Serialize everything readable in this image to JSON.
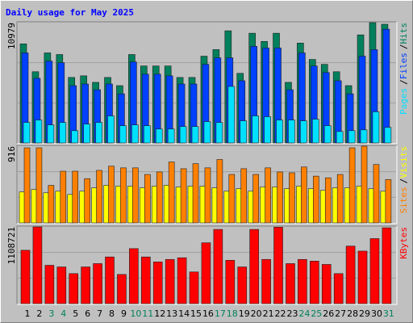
{
  "legend_separator": "/",
  "chart_data": [
    {
      "type": "bar",
      "title": "Daily usage for May 2025",
      "ylim": [
        0,
        10979
      ],
      "yticks": [
        10979
      ],
      "grid": true,
      "legend": "right",
      "series": [
        {
          "name": "Hits",
          "color": "#00805c",
          "values": [
            9040,
            6499,
            8217,
            8068,
            5976,
            6125,
            5528,
            5976,
            5229,
            8068,
            7022,
            7022,
            7022,
            5976,
            5976,
            7918,
            8516,
            10234,
            6350,
            10010,
            9263,
            10010,
            5528,
            9113,
            7619,
            7171,
            6499,
            5229,
            9860,
            10979,
            10830
          ]
        },
        {
          "name": "Files",
          "color": "#0040ff",
          "values": [
            8217,
            5901,
            7470,
            7321,
            5229,
            5378,
            4856,
            5378,
            4482,
            7395,
            6275,
            6275,
            6125,
            5378,
            5378,
            7171,
            7769,
            7769,
            5677,
            8815,
            8665,
            8665,
            4856,
            8217,
            7022,
            6424,
            5677,
            4482,
            7918,
            8516,
            10383
          ]
        },
        {
          "name": "Pages",
          "color": "#00e0ff",
          "values": [
            1868,
            2092,
            1643,
            1868,
            1121,
            1718,
            1868,
            2465,
            1569,
            1643,
            1569,
            1270,
            1270,
            1494,
            1494,
            1942,
            1868,
            5154,
            2017,
            2465,
            2390,
            2092,
            2092,
            2017,
            2166,
            1569,
            1046,
            1121,
            1195,
            2839,
            1419
          ]
        }
      ]
    },
    {
      "type": "bar",
      "ylim": [
        0,
        916
      ],
      "yticks": [
        916
      ],
      "grid": true,
      "legend": "right",
      "series": [
        {
          "name": "Visits",
          "color": "#ffff00",
          "values": [
            369,
            398,
            359,
            378,
            339,
            378,
            418,
            448,
            438,
            438,
            418,
            438,
            448,
            428,
            438,
            438,
            418,
            378,
            408,
            378,
            428,
            428,
            408,
            438,
            408,
            388,
            418,
            418,
            438,
            408,
            378
          ]
        },
        {
          "name": "Sites",
          "color": "#ff8000",
          "values": [
            896,
            896,
            448,
            617,
            617,
            528,
            627,
            677,
            657,
            657,
            578,
            608,
            727,
            647,
            707,
            657,
            757,
            578,
            647,
            578,
            657,
            608,
            598,
            667,
            558,
            538,
            578,
            896,
            916,
            697,
            518
          ]
        }
      ]
    },
    {
      "type": "bar",
      "ylim": [
        0,
        1108721
      ],
      "yticks": [
        1108721
      ],
      "grid": true,
      "legend": "right",
      "categories": [
        "1",
        "2",
        "3",
        "4",
        "5",
        "6",
        "7",
        "8",
        "9",
        "10",
        "11",
        "12",
        "13",
        "14",
        "15",
        "16",
        "17",
        "18",
        "19",
        "20",
        "21",
        "22",
        "23",
        "24",
        "25",
        "26",
        "27",
        "28",
        "29",
        "30",
        "31"
      ],
      "category_colors": [
        "#000000",
        "#000000",
        "#00805c",
        "#00805c",
        "#000000",
        "#000000",
        "#000000",
        "#000000",
        "#000000",
        "#00805c",
        "#00805c",
        "#000000",
        "#000000",
        "#000000",
        "#000000",
        "#000000",
        "#00805c",
        "#00805c",
        "#000000",
        "#000000",
        "#000000",
        "#000000",
        "#000000",
        "#00805c",
        "#00805c",
        "#000000",
        "#000000",
        "#000000",
        "#000000",
        "#000000",
        "#00805c"
      ],
      "series": [
        {
          "name": "KBytes",
          "color": "#ff0000",
          "values": [
            771264,
            1108721,
            554346,
            530244,
            433836,
            530244,
            578448,
            674856,
            421785,
            795366,
            674856,
            602550,
            638703,
            662805,
            457938,
            879723,
            1072539,
            626652,
            530244,
            1072539,
            638703,
            1105000,
            578448,
            638703,
            614601,
            566397,
            433836,
            831519,
            759213,
            939978,
            1096000
          ]
        }
      ]
    }
  ]
}
